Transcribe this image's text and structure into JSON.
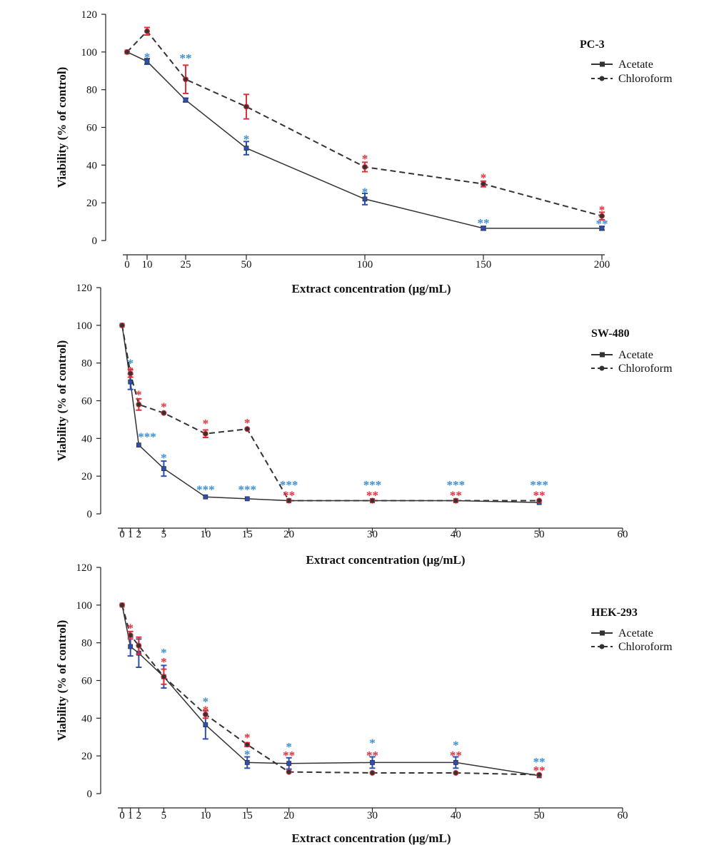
{
  "chart_data": [
    {
      "type": "line",
      "title": "PC-3",
      "xlabel": "Extract concentration (μg/mL)",
      "ylabel": "Viability (% of control)",
      "xlim": [
        0,
        200
      ],
      "ylim": [
        0,
        120
      ],
      "xticks": [
        0,
        10,
        25,
        50,
        100,
        150,
        200
      ],
      "xtick_labels": [
        "0",
        "10",
        "25",
        "50",
        "100",
        "150",
        "200"
      ],
      "yticks": [
        0,
        20,
        40,
        60,
        80,
        100,
        120
      ],
      "ytick_labels": [
        "0",
        "20",
        "40",
        "60",
        "80",
        "100",
        "120"
      ],
      "legend": "right",
      "series": [
        {
          "name": "Acetate",
          "style": "solid",
          "color": "#333333",
          "err_color": "#2b4fb5",
          "x": [
            0,
            10,
            25,
            50,
            100,
            150,
            200
          ],
          "y": [
            100,
            95,
            74.5,
            49,
            22,
            6.5,
            6.5
          ],
          "err": [
            0,
            1.5,
            1,
            3.5,
            3,
            1,
            1
          ],
          "stars": [
            {
              "x": 10,
              "text": "*",
              "y": 97.5
            },
            {
              "x": 25,
              "text": "**",
              "y": 97
            },
            {
              "x": 50,
              "text": "*",
              "y": 54
            },
            {
              "x": 100,
              "text": "*",
              "y": 26
            },
            {
              "x": 150,
              "text": "**",
              "y": 9.5
            },
            {
              "x": 200,
              "text": "**",
              "y": 9
            }
          ]
        },
        {
          "name": "Chloroform",
          "style": "dashed",
          "color": "#333333",
          "err_color": "#e0303a",
          "x": [
            0,
            10,
            25,
            50,
            100,
            150,
            200
          ],
          "y": [
            100,
            111,
            85.5,
            71,
            39,
            30,
            13
          ],
          "err": [
            0,
            2,
            7.5,
            6.5,
            2.5,
            1.5,
            2
          ],
          "stars": [
            {
              "x": 100,
              "text": "*",
              "y": 43.5
            },
            {
              "x": 150,
              "text": "*",
              "y": 33.5
            },
            {
              "x": 200,
              "text": "*",
              "y": 16.5
            }
          ]
        }
      ]
    },
    {
      "type": "line",
      "title": "SW-480",
      "xlabel": "Extract concentration (μg/mL)",
      "ylabel": "Viability (% of control)",
      "xlim": [
        0,
        60
      ],
      "ylim": [
        0,
        120
      ],
      "xticks": [
        0,
        1,
        2,
        5,
        10,
        15,
        20,
        30,
        40,
        50,
        60
      ],
      "xtick_labels": [
        "0",
        "1",
        "2",
        "5",
        "10",
        "15",
        "20",
        "30",
        "40",
        "50",
        "60"
      ],
      "yticks": [
        0,
        20,
        40,
        60,
        80,
        100,
        120
      ],
      "ytick_labels": [
        "0",
        "20",
        "40",
        "60",
        "80",
        "100",
        "120"
      ],
      "legend": "right",
      "series": [
        {
          "name": "Acetate",
          "style": "solid",
          "color": "#333333",
          "err_color": "#2b4fb5",
          "x": [
            0,
            1,
            2,
            5,
            10,
            15,
            20,
            30,
            40,
            50
          ],
          "y": [
            100,
            70,
            36.5,
            24,
            9,
            8,
            7,
            7,
            7,
            6
          ],
          "err": [
            0,
            4,
            0.5,
            4,
            0.5,
            0.5,
            0.5,
            0.5,
            0.5,
            0.5
          ],
          "stars": [
            {
              "x": 1,
              "text": "*",
              "y": 80
            },
            {
              "x": 3,
              "text": "***",
              "y": 41
            },
            {
              "x": 5,
              "text": "*",
              "y": 30
            },
            {
              "x": 10,
              "text": "***",
              "y": 13
            },
            {
              "x": 15,
              "text": "***",
              "y": 13
            },
            {
              "x": 20,
              "text": "***",
              "y": 15.5
            },
            {
              "x": 30,
              "text": "***",
              "y": 15.5
            },
            {
              "x": 40,
              "text": "***",
              "y": 15.5
            },
            {
              "x": 50,
              "text": "***",
              "y": 15.5
            }
          ]
        },
        {
          "name": "Chloroform",
          "style": "dashed",
          "color": "#333333",
          "err_color": "#e0303a",
          "x": [
            0,
            1,
            2,
            5,
            10,
            15,
            20,
            30,
            40,
            50
          ],
          "y": [
            100,
            74.5,
            58,
            53.5,
            42.5,
            45,
            7,
            7,
            7,
            7
          ],
          "err": [
            0,
            2,
            3,
            0.5,
            2,
            0.5,
            0.5,
            0.5,
            0.5,
            0.5
          ],
          "stars": [
            {
              "x": 1,
              "text": "*",
              "y": 76
            },
            {
              "x": 2,
              "text": "*",
              "y": 63.5
            },
            {
              "x": 5,
              "text": "*",
              "y": 57
            },
            {
              "x": 10,
              "text": "*",
              "y": 48
            },
            {
              "x": 15,
              "text": "*",
              "y": 48.5
            },
            {
              "x": 20,
              "text": "**",
              "y": 10
            },
            {
              "x": 30,
              "text": "**",
              "y": 10
            },
            {
              "x": 40,
              "text": "**",
              "y": 10
            },
            {
              "x": 50,
              "text": "**",
              "y": 10
            }
          ]
        }
      ]
    },
    {
      "type": "line",
      "title": "HEK-293",
      "xlabel": "Extract concentration (μg/mL)",
      "ylabel": "Viability (% of control)",
      "xlim": [
        0,
        60
      ],
      "ylim": [
        0,
        120
      ],
      "xticks": [
        0,
        1,
        2,
        5,
        10,
        15,
        20,
        30,
        40,
        50,
        60
      ],
      "xtick_labels": [
        "0",
        "1",
        "2",
        "5",
        "10",
        "15",
        "20",
        "30",
        "40",
        "50",
        "60"
      ],
      "yticks": [
        0,
        20,
        40,
        60,
        80,
        100,
        120
      ],
      "ytick_labels": [
        "0",
        "20",
        "40",
        "60",
        "80",
        "100",
        "120"
      ],
      "legend": "right",
      "series": [
        {
          "name": "Acetate",
          "style": "solid",
          "color": "#333333",
          "err_color": "#2b4fb5",
          "x": [
            0,
            1,
            2,
            5,
            10,
            15,
            20,
            30,
            40,
            50
          ],
          "y": [
            100,
            78,
            74.5,
            62,
            36.5,
            16.5,
            16,
            16.5,
            16.5,
            9.5
          ],
          "err": [
            0,
            5,
            7.5,
            6,
            7.5,
            3,
            3,
            3,
            3,
            0.5
          ],
          "stars": [
            {
              "x": 5,
              "text": "*",
              "y": 75
            },
            {
              "x": 10,
              "text": "*",
              "y": 49
            },
            {
              "x": 15,
              "text": "*",
              "y": 21
            },
            {
              "x": 20,
              "text": "*",
              "y": 25
            },
            {
              "x": 30,
              "text": "*",
              "y": 27
            },
            {
              "x": 40,
              "text": "*",
              "y": 26
            },
            {
              "x": 50,
              "text": "**",
              "y": 17
            }
          ]
        },
        {
          "name": "Chloroform",
          "style": "dashed",
          "color": "#333333",
          "err_color": "#e0303a",
          "x": [
            0,
            1,
            2,
            5,
            10,
            15,
            20,
            30,
            40,
            50
          ],
          "y": [
            100,
            84,
            78.5,
            62,
            42,
            26,
            11.5,
            11,
            11,
            10
          ],
          "err": [
            0,
            2,
            4.5,
            4,
            2,
            1,
            0.5,
            0.5,
            0.5,
            0.5
          ],
          "stars": [
            {
              "x": 1,
              "text": "*",
              "y": 88
            },
            {
              "x": 5,
              "text": "*",
              "y": 70
            },
            {
              "x": 10,
              "text": "*",
              "y": 44.5
            },
            {
              "x": 15,
              "text": "*",
              "y": 30
            },
            {
              "x": 20,
              "text": "**",
              "y": 20.5
            },
            {
              "x": 30,
              "text": "**",
              "y": 20.5
            },
            {
              "x": 40,
              "text": "**",
              "y": 20.5
            },
            {
              "x": 50,
              "text": "**",
              "y": 12.5
            }
          ]
        }
      ]
    }
  ]
}
